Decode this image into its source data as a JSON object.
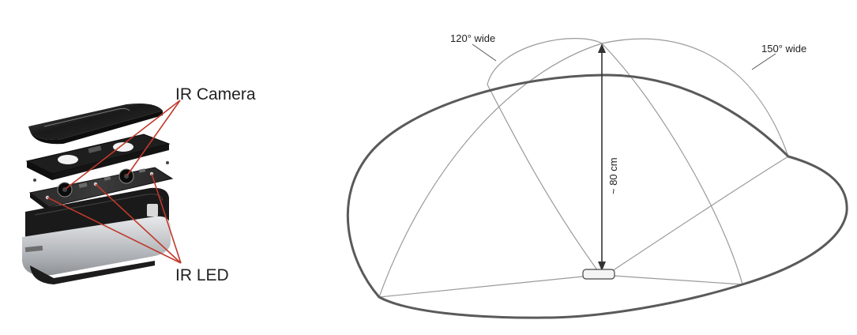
{
  "labels": {
    "ir_camera": "IR Camera",
    "ir_led": "IR LED",
    "wide_120": "120° wide",
    "wide_150": "150° wide",
    "height": "~ 80 cm"
  },
  "colors": {
    "callout_line": "#c0392b",
    "outline": "#555555",
    "thin_line": "#9a9a9a",
    "device_dark": "#1c1c1c",
    "device_silver": "#c9ccd0"
  }
}
